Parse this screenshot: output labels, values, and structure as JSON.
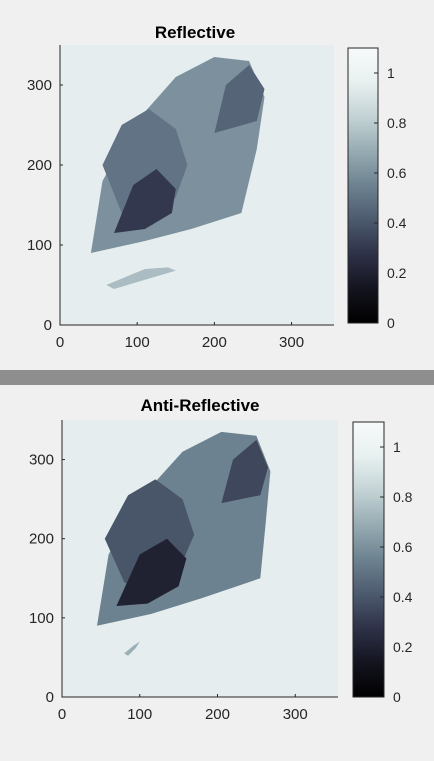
{
  "chart_data": [
    {
      "type": "heatmap",
      "title": "Reflective",
      "xlabel": "",
      "ylabel": "",
      "xlim": [
        0,
        355
      ],
      "ylim": [
        0,
        350
      ],
      "xticks": [
        0,
        100,
        200,
        300
      ],
      "yticks": [
        0,
        100,
        200,
        300
      ],
      "colorbar": {
        "min": 0,
        "max": 1.1,
        "ticks": [
          0,
          0.2,
          0.4,
          0.6,
          0.8,
          1
        ]
      },
      "colormap": [
        "#000000",
        "#14141f",
        "#2e3147",
        "#4c5a6e",
        "#6d8290",
        "#97abb3",
        "#c3d3d5",
        "#e8f0f0",
        "#f7fafa"
      ],
      "background_value": 0.95,
      "regions": [
        {
          "value": 0.6,
          "polygon": [
            [
              40,
              90
            ],
            [
              55,
              180
            ],
            [
              95,
              250
            ],
            [
              150,
              310
            ],
            [
              200,
              335
            ],
            [
              245,
              330
            ],
            [
              265,
              285
            ],
            [
              255,
              220
            ],
            [
              235,
              140
            ],
            [
              170,
              120
            ],
            [
              110,
              105
            ]
          ]
        },
        {
          "value": 0.5,
          "polygon": [
            [
              55,
              200
            ],
            [
              80,
              250
            ],
            [
              115,
              270
            ],
            [
              150,
              245
            ],
            [
              165,
              200
            ],
            [
              150,
              160
            ],
            [
              120,
              125
            ],
            [
              80,
              140
            ]
          ]
        },
        {
          "value": 0.3,
          "polygon": [
            [
              70,
              115
            ],
            [
              95,
              175
            ],
            [
              125,
              195
            ],
            [
              150,
              170
            ],
            [
              145,
              140
            ],
            [
              110,
              120
            ]
          ]
        },
        {
          "value": 0.45,
          "polygon": [
            [
              200,
              240
            ],
            [
              215,
              300
            ],
            [
              245,
              325
            ],
            [
              265,
              295
            ],
            [
              255,
              255
            ]
          ]
        },
        {
          "value": 0.75,
          "polygon": [
            [
              60,
              50
            ],
            [
              110,
              70
            ],
            [
              140,
              72
            ],
            [
              150,
              68
            ],
            [
              115,
              58
            ],
            [
              70,
              45
            ]
          ]
        }
      ]
    },
    {
      "type": "heatmap",
      "title": "Anti-Reflective",
      "xlabel": "",
      "ylabel": "",
      "xlim": [
        0,
        355
      ],
      "ylim": [
        0,
        350
      ],
      "xticks": [
        0,
        100,
        200,
        300
      ],
      "yticks": [
        0,
        100,
        200,
        300
      ],
      "colorbar": {
        "min": 0,
        "max": 1.1,
        "ticks": [
          0,
          0.2,
          0.4,
          0.6,
          0.8,
          1
        ]
      },
      "colormap": [
        "#000000",
        "#14141f",
        "#2e3147",
        "#4c5a6e",
        "#6d8290",
        "#97abb3",
        "#c3d3d5",
        "#e8f0f0",
        "#f7fafa"
      ],
      "background_value": 0.95,
      "regions": [
        {
          "value": 0.55,
          "polygon": [
            [
              45,
              90
            ],
            [
              60,
              180
            ],
            [
              100,
              250
            ],
            [
              155,
              310
            ],
            [
              205,
              335
            ],
            [
              250,
              330
            ],
            [
              268,
              285
            ],
            [
              262,
              220
            ],
            [
              255,
              150
            ],
            [
              180,
              125
            ],
            [
              115,
              105
            ]
          ]
        },
        {
          "value": 0.4,
          "polygon": [
            [
              55,
              200
            ],
            [
              85,
              255
            ],
            [
              120,
              275
            ],
            [
              155,
              250
            ],
            [
              170,
              205
            ],
            [
              150,
              160
            ],
            [
              120,
              125
            ],
            [
              80,
              145
            ]
          ]
        },
        {
          "value": 0.2,
          "polygon": [
            [
              70,
              115
            ],
            [
              100,
              180
            ],
            [
              135,
              200
            ],
            [
              160,
              175
            ],
            [
              150,
              140
            ],
            [
              110,
              118
            ]
          ]
        },
        {
          "value": 0.35,
          "polygon": [
            [
              205,
              245
            ],
            [
              220,
              300
            ],
            [
              250,
              325
            ],
            [
              265,
              290
            ],
            [
              255,
              255
            ]
          ]
        },
        {
          "value": 0.7,
          "polygon": [
            [
              80,
              55
            ],
            [
              92,
              65
            ],
            [
              100,
              70
            ],
            [
              95,
              62
            ],
            [
              85,
              52
            ]
          ]
        }
      ]
    }
  ]
}
